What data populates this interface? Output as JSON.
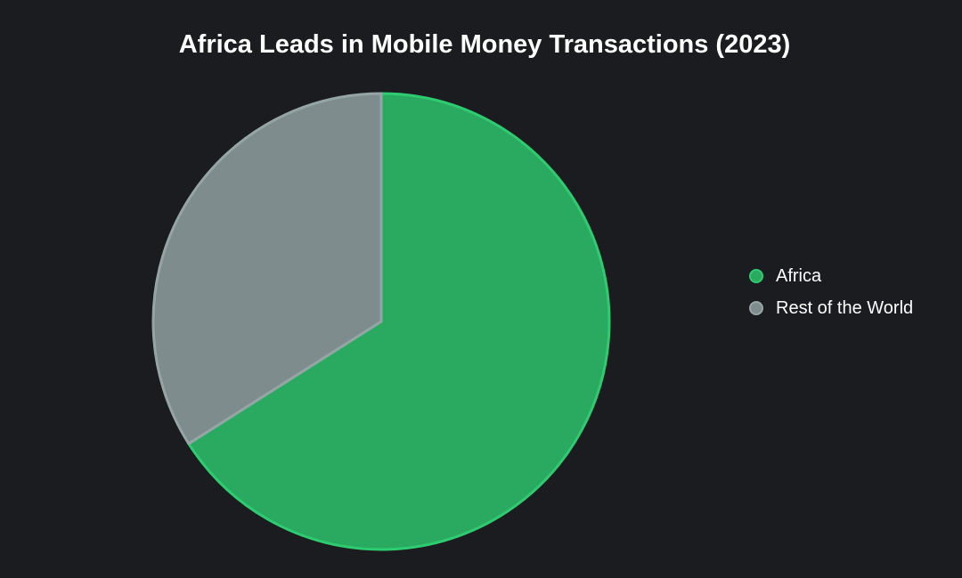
{
  "chart_data": {
    "type": "pie",
    "title": "Africa Leads in Mobile Money Transactions (2023)",
    "slices": [
      {
        "name": "Africa",
        "value": 66,
        "color": "#2aa961",
        "border": "#2ecc71"
      },
      {
        "name": "Rest of the World",
        "value": 34,
        "color": "#7f8c8d",
        "border": "#95a5a6"
      }
    ],
    "legend_position": "right"
  }
}
